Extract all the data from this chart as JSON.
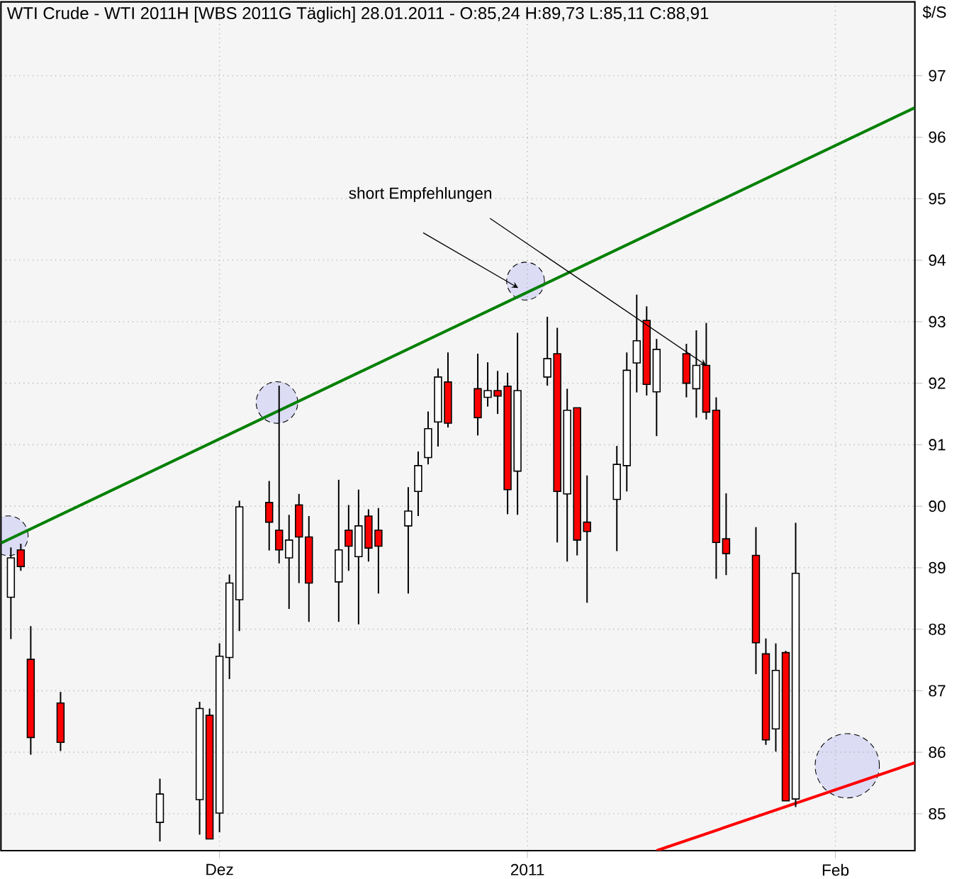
{
  "chart_data": {
    "type": "candlestick",
    "title": "WTI Crude - WTI 2011H [WBS 2011G Täglich] 28.01.2011 - O:85,24 H:89,73 L:85,11 C:88,91",
    "ylabel": "$/S",
    "annotations": [
      {
        "text": "short Empfehlungen",
        "x": "2011-01-19",
        "y": 92.29
      }
    ],
    "x": [
      "2010-11-10",
      "2010-11-11",
      "2010-11-12",
      "2010-11-15",
      "2010-11-25",
      "2010-11-29",
      "2010-11-30",
      "2010-12-01",
      "2010-12-02",
      "2010-12-03",
      "2010-12-06",
      "2010-12-07",
      "2010-12-08",
      "2010-12-09",
      "2010-12-10",
      "2010-12-13",
      "2010-12-14",
      "2010-12-15",
      "2010-12-16",
      "2010-12-17",
      "2010-12-20",
      "2010-12-21",
      "2010-12-22",
      "2010-12-23",
      "2010-12-24",
      "2010-12-27",
      "2010-12-28",
      "2010-12-29",
      "2010-12-30",
      "2010-12-31",
      "2011-01-03",
      "2011-01-04",
      "2011-01-05",
      "2011-01-06",
      "2011-01-07",
      "2011-01-10",
      "2011-01-11",
      "2011-01-12",
      "2011-01-13",
      "2011-01-14",
      "2011-01-17",
      "2011-01-18",
      "2011-01-19",
      "2011-01-20",
      "2011-01-21",
      "2011-01-24",
      "2011-01-25",
      "2011-01-26",
      "2011-01-27",
      "2011-01-28"
    ],
    "ohlc": [
      [
        88.52,
        89.33,
        87.84,
        89.16
      ],
      [
        89.29,
        89.39,
        88.95,
        89.02
      ],
      [
        87.51,
        88.05,
        85.96,
        86.24
      ],
      [
        86.8,
        86.98,
        86.02,
        86.16
      ],
      [
        84.86,
        85.57,
        84.55,
        85.32
      ],
      [
        85.23,
        86.82,
        84.66,
        86.71
      ],
      [
        86.6,
        86.71,
        84.59,
        84.59
      ],
      [
        85.01,
        87.77,
        84.7,
        87.56
      ],
      [
        87.54,
        88.89,
        87.19,
        88.75
      ],
      [
        88.48,
        90.09,
        87.97,
        89.99
      ],
      [
        90.06,
        90.41,
        89.28,
        89.74
      ],
      [
        89.61,
        91.96,
        89.07,
        89.29
      ],
      [
        89.16,
        89.86,
        88.33,
        89.45
      ],
      [
        90.02,
        90.2,
        88.75,
        89.5
      ],
      [
        89.5,
        89.84,
        88.12,
        88.75
      ],
      [
        88.77,
        90.43,
        88.12,
        89.29
      ],
      [
        89.61,
        90.02,
        88.95,
        89.35
      ],
      [
        89.18,
        90.27,
        88.08,
        89.68
      ],
      [
        89.84,
        89.95,
        89.1,
        89.32
      ],
      [
        89.61,
        89.97,
        88.58,
        89.35
      ],
      [
        89.68,
        90.31,
        88.58,
        89.92
      ],
      [
        90.24,
        90.89,
        89.84,
        90.66
      ],
      [
        90.79,
        91.54,
        90.68,
        91.26
      ],
      [
        91.37,
        92.24,
        90.97,
        92.1
      ],
      [
        92.02,
        92.5,
        91.28,
        91.35
      ],
      [
        91.91,
        92.48,
        91.15,
        91.44
      ],
      [
        91.77,
        92.34,
        91.62,
        91.88
      ],
      [
        91.88,
        92.2,
        91.5,
        91.79
      ],
      [
        91.95,
        92.17,
        89.87,
        90.27
      ],
      [
        90.57,
        92.82,
        89.86,
        91.88
      ],
      [
        92.1,
        93.08,
        91.96,
        92.4
      ],
      [
        92.48,
        92.9,
        89.41,
        90.24
      ],
      [
        90.2,
        91.91,
        89.1,
        91.56
      ],
      [
        91.6,
        91.6,
        89.2,
        89.45
      ],
      [
        89.74,
        90.5,
        88.43,
        89.59
      ],
      [
        90.11,
        90.98,
        89.27,
        90.68
      ],
      [
        90.66,
        92.5,
        90.24,
        92.21
      ],
      [
        92.33,
        93.44,
        91.85,
        92.69
      ],
      [
        93.02,
        93.25,
        91.8,
        91.98
      ],
      [
        91.86,
        92.72,
        91.14,
        92.55
      ],
      [
        92.48,
        92.64,
        91.77,
        92.0
      ],
      [
        91.91,
        92.86,
        91.44,
        92.29
      ],
      [
        92.29,
        92.98,
        91.41,
        91.53
      ],
      [
        91.56,
        91.77,
        88.82,
        89.41
      ],
      [
        89.47,
        90.21,
        88.88,
        89.23
      ],
      [
        89.2,
        89.66,
        87.27,
        87.78
      ],
      [
        87.6,
        87.85,
        86.12,
        86.2
      ],
      [
        86.38,
        87.77,
        86.01,
        87.33
      ],
      [
        87.62,
        87.65,
        85.21,
        85.21
      ],
      [
        85.24,
        89.73,
        85.11,
        88.91
      ]
    ],
    "series": [
      {
        "type": "line",
        "x": [
          "2010-11-09",
          "2011-02-09"
        ],
        "values": [
          89.4,
          96.48
        ],
        "color": "#008000"
      },
      {
        "type": "line",
        "x": [
          "2011-01-14",
          "2011-02-09"
        ],
        "values": [
          84.4,
          85.83
        ],
        "color": "#ff0000"
      }
    ],
    "xlim": [
      "2010-11-09",
      "2011-02-09"
    ],
    "ylim": [
      84.4,
      98.2
    ],
    "xticks": [
      {
        "value": "2010-12-01",
        "label": "Dez"
      },
      {
        "value": "2011-01-01",
        "label": "2011"
      },
      {
        "value": "2011-02-01",
        "label": "Feb"
      }
    ],
    "yticks": [
      85,
      86,
      87,
      88,
      89,
      90,
      91,
      92,
      93,
      94,
      95,
      96,
      97
    ],
    "grid": true,
    "line_style": "solid",
    "marker": "none"
  }
}
